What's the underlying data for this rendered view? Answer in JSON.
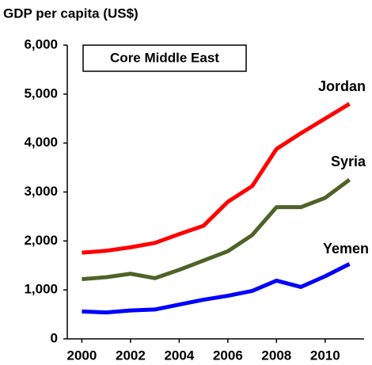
{
  "chart_data": {
    "type": "line",
    "title": "GDP per capita (US$)",
    "annotation": "Core Middle East",
    "x": [
      2000,
      2001,
      2002,
      2003,
      2004,
      2005,
      2006,
      2007,
      2008,
      2009,
      2010,
      2011
    ],
    "series": [
      {
        "name": "Jordan",
        "color": "#ff0000",
        "values": [
          1760,
          1800,
          1870,
          1960,
          2140,
          2310,
          2800,
          3120,
          3880,
          4200,
          4500,
          4800
        ]
      },
      {
        "name": "Syria",
        "color": "#4f6228",
        "values": [
          1220,
          1260,
          1330,
          1240,
          1410,
          1600,
          1790,
          2120,
          2690,
          2690,
          2880,
          3250
        ]
      },
      {
        "name": "Yemen",
        "color": "#0000ff",
        "values": [
          560,
          540,
          580,
          600,
          700,
          800,
          880,
          980,
          1190,
          1060,
          1280,
          1530
        ]
      }
    ],
    "xlim": [
      1999.4,
      2011.6
    ],
    "xticks": [
      2000,
      2002,
      2004,
      2006,
      2008,
      2010
    ],
    "ylim": [
      0,
      6000
    ],
    "yticks": [
      0,
      {
        "value": 1000,
        "label": "1,000"
      },
      {
        "value": 2000,
        "label": "2,000"
      },
      {
        "value": 3000,
        "label": "3,000"
      },
      {
        "value": 4000,
        "label": "4,000"
      },
      {
        "value": 5000,
        "label": "5,000"
      },
      {
        "value": 6000,
        "label": "6,000"
      }
    ]
  }
}
